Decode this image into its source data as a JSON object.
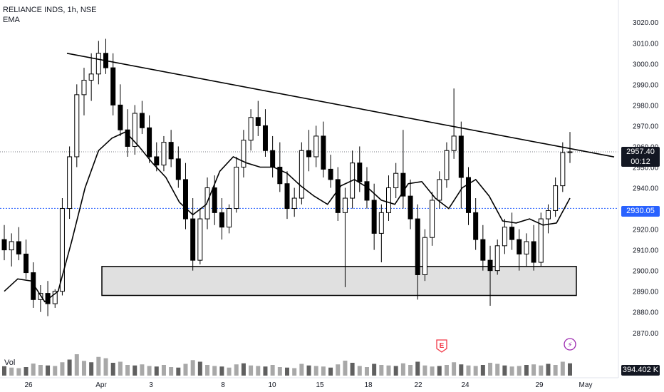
{
  "header": {
    "symbol": "RELIANCE INDS, 1h, NSE",
    "indicator": "EMA"
  },
  "volume_label": "Vol",
  "price_axis": {
    "ticks": [
      "3020.00",
      "3010.00",
      "3000.00",
      "2990.00",
      "2980.00",
      "2970.00",
      "2960.00",
      "2950.00",
      "2940.00",
      "2930.00",
      "2920.00",
      "2910.00",
      "2900.00",
      "2890.00",
      "2880.00",
      "2870.00"
    ]
  },
  "time_axis": {
    "ticks": [
      "26",
      "Apr",
      "3",
      "8",
      "10",
      "15",
      "18",
      "22",
      "24",
      "29",
      "May"
    ]
  },
  "badges": {
    "last_price": "2957.40",
    "countdown": "00:12",
    "line_price": "2930.05",
    "volume": "394.402 K",
    "earnings_marker": "E",
    "dividend_marker": "⚡"
  },
  "colors": {
    "candle": "#000000",
    "ema": "#000000",
    "trendline": "#000000",
    "support_zone_fill": "#e0e0e0",
    "dotted_line": "#2962ff",
    "earnings": "#f23645",
    "dividend": "#9c27b0",
    "volume_bar": "#a8a8a8",
    "volume_bar_dark": "#606060"
  },
  "chart_data": {
    "type": "candlestick",
    "ylim": [
      2862,
      3028
    ],
    "trendline": [
      {
        "x": "Mar 27",
        "y": 3005
      },
      {
        "x": "May 1",
        "y": 2957
      }
    ],
    "support_zone": {
      "x_start": "Apr 1",
      "x_end": "May 1",
      "y_low": 2888,
      "y_high": 2902
    },
    "horizontal_line": 2930.05,
    "last_price_line": 2957.4,
    "ohlc": [
      [
        2915,
        2922,
        2905,
        2910
      ],
      [
        2910,
        2918,
        2902,
        2914
      ],
      [
        2914,
        2921,
        2905,
        2908
      ],
      [
        2908,
        2915,
        2896,
        2899
      ],
      [
        2899,
        2904,
        2882,
        2886
      ],
      [
        2886,
        2893,
        2880,
        2889
      ],
      [
        2889,
        2895,
        2878,
        2884
      ],
      [
        2884,
        2891,
        2882,
        2890
      ],
      [
        2890,
        2935,
        2888,
        2930
      ],
      [
        2930,
        2960,
        2925,
        2955
      ],
      [
        2955,
        2990,
        2950,
        2985
      ],
      [
        2985,
        2998,
        2975,
        2992
      ],
      [
        2992,
        3005,
        2982,
        2995
      ],
      [
        2995,
        3011,
        2990,
        3005
      ],
      [
        3005,
        3012,
        2995,
        2998
      ],
      [
        2998,
        3005,
        2975,
        2980
      ],
      [
        2980,
        2990,
        2965,
        2968
      ],
      [
        2968,
        2978,
        2955,
        2960
      ],
      [
        2960,
        2980,
        2956,
        2976
      ],
      [
        2976,
        2982,
        2966,
        2969
      ],
      [
        2969,
        2975,
        2952,
        2955
      ],
      [
        2955,
        2962,
        2948,
        2951
      ],
      [
        2951,
        2965,
        2948,
        2962
      ],
      [
        2962,
        2968,
        2950,
        2954
      ],
      [
        2954,
        2960,
        2940,
        2944
      ],
      [
        2944,
        2952,
        2920,
        2925
      ],
      [
        2925,
        2935,
        2900,
        2905
      ],
      [
        2905,
        2930,
        2903,
        2925
      ],
      [
        2925,
        2945,
        2920,
        2940
      ],
      [
        2940,
        2946,
        2922,
        2928
      ],
      [
        2928,
        2935,
        2915,
        2921
      ],
      [
        2921,
        2932,
        2918,
        2930
      ],
      [
        2930,
        2955,
        2928,
        2950
      ],
      [
        2950,
        2968,
        2945,
        2963
      ],
      [
        2963,
        2978,
        2958,
        2974
      ],
      [
        2974,
        2982,
        2965,
        2970
      ],
      [
        2970,
        2978,
        2955,
        2958
      ],
      [
        2958,
        2965,
        2945,
        2950
      ],
      [
        2950,
        2962,
        2938,
        2942
      ],
      [
        2942,
        2948,
        2925,
        2930
      ],
      [
        2930,
        2940,
        2926,
        2935
      ],
      [
        2935,
        2962,
        2932,
        2958
      ],
      [
        2958,
        2968,
        2948,
        2955
      ],
      [
        2955,
        2970,
        2950,
        2965
      ],
      [
        2965,
        2972,
        2945,
        2949
      ],
      [
        2949,
        2956,
        2940,
        2944
      ],
      [
        2944,
        2950,
        2924,
        2928
      ],
      [
        2928,
        2940,
        2892,
        2935
      ],
      [
        2935,
        2958,
        2930,
        2952
      ],
      [
        2952,
        2960,
        2938,
        2943
      ],
      [
        2943,
        2950,
        2930,
        2934
      ],
      [
        2934,
        2942,
        2910,
        2918
      ],
      [
        2918,
        2932,
        2904,
        2928
      ],
      [
        2928,
        2946,
        2924,
        2940
      ],
      [
        2940,
        2952,
        2935,
        2947
      ],
      [
        2947,
        2968,
        2930,
        2936
      ],
      [
        2936,
        2944,
        2920,
        2925
      ],
      [
        2925,
        2932,
        2886,
        2898
      ],
      [
        2898,
        2920,
        2895,
        2916
      ],
      [
        2916,
        2938,
        2912,
        2934
      ],
      [
        2934,
        2948,
        2930,
        2944
      ],
      [
        2944,
        2962,
        2940,
        2958
      ],
      [
        2958,
        2988,
        2954,
        2965
      ],
      [
        2965,
        2972,
        2930,
        2945
      ],
      [
        2945,
        2950,
        2922,
        2928
      ],
      [
        2928,
        2935,
        2910,
        2915
      ],
      [
        2915,
        2922,
        2900,
        2905
      ],
      [
        2905,
        2912,
        2883,
        2900
      ],
      [
        2900,
        2915,
        2898,
        2912
      ],
      [
        2912,
        2925,
        2908,
        2921
      ],
      [
        2921,
        2928,
        2910,
        2915
      ],
      [
        2915,
        2920,
        2900,
        2908
      ],
      [
        2908,
        2918,
        2902,
        2914
      ],
      [
        2914,
        2922,
        2900,
        2904
      ],
      [
        2904,
        2928,
        2902,
        2925
      ],
      [
        2925,
        2932,
        2918,
        2929
      ],
      [
        2929,
        2945,
        2926,
        2941
      ],
      [
        2941,
        2962,
        2938,
        2957
      ],
      [
        2957,
        2967,
        2952,
        2957.4
      ]
    ],
    "ema": [
      2890,
      2896,
      2895,
      2885,
      2890,
      2914,
      2940,
      2958,
      2964,
      2967,
      2960,
      2952,
      2945,
      2933,
      2927,
      2932,
      2948,
      2955,
      2952,
      2950,
      2950,
      2947,
      2941,
      2936,
      2932,
      2941,
      2944,
      2940,
      2934,
      2932,
      2942,
      2943,
      2935,
      2930,
      2940,
      2944,
      2936,
      2924,
      2923,
      2925,
      2922,
      2923,
      2935
    ],
    "volume": [
      35,
      30,
      28,
      32,
      45,
      40,
      38,
      36,
      50,
      60,
      80,
      55,
      50,
      70,
      65,
      48,
      52,
      40,
      38,
      42,
      36,
      34,
      40,
      32,
      30,
      44,
      58,
      52,
      40,
      36,
      34,
      30,
      42,
      46,
      38,
      36,
      34,
      40,
      32,
      30,
      28,
      44,
      38,
      36,
      34,
      30,
      42,
      56,
      48,
      36,
      32,
      44,
      40,
      38,
      36,
      46,
      40,
      52,
      38,
      34,
      36,
      40,
      50,
      42,
      38,
      36,
      40,
      48,
      44,
      38,
      34,
      36,
      40,
      42,
      38,
      44,
      40,
      52,
      46
    ]
  }
}
